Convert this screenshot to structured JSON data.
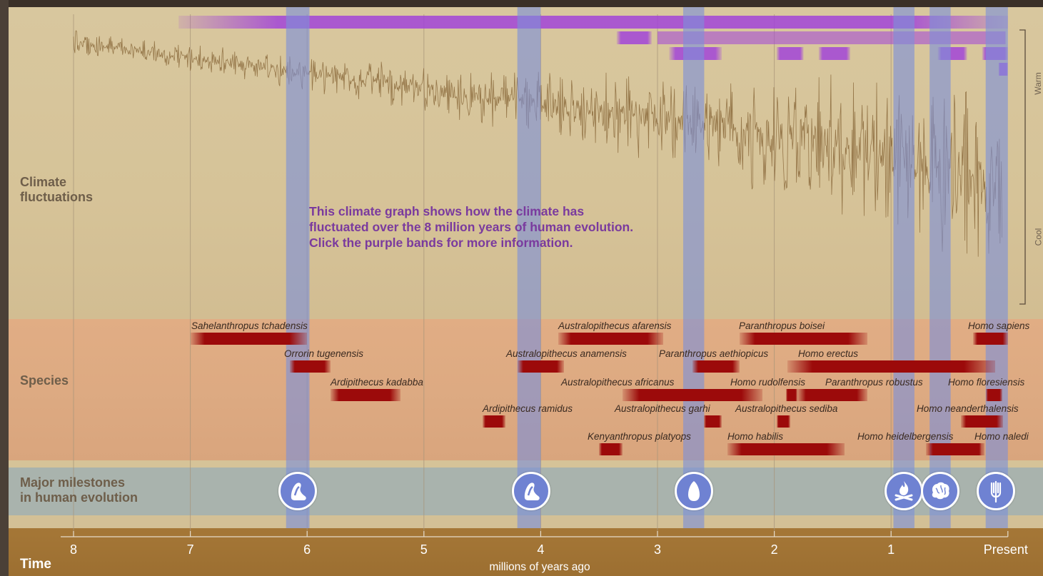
{
  "sections": {
    "climate": "Climate\nfluctuations",
    "species": "Species",
    "milestones": "Major milestones\nin human evolution",
    "time": "Time"
  },
  "climate_note": "This climate graph shows how the climate has\nfluctuated over the 8 million years of human evolution.\nClick the purple bands for more information.",
  "climate_axis": {
    "warm": "Warm",
    "cool": "Cool"
  },
  "time_axis": {
    "ticks": [
      {
        "value": 8,
        "label": "8"
      },
      {
        "value": 7,
        "label": "7"
      },
      {
        "value": 6,
        "label": "6"
      },
      {
        "value": 5,
        "label": "5"
      },
      {
        "value": 4,
        "label": "4"
      },
      {
        "value": 3,
        "label": "3"
      },
      {
        "value": 2,
        "label": "2"
      },
      {
        "value": 1,
        "label": "1"
      },
      {
        "value": 0,
        "label": "Present"
      }
    ],
    "units": "millions of years ago"
  },
  "chart_data": {
    "type": "line",
    "x_range_mya": [
      8,
      0
    ],
    "climate_series_note": "oscillating record; amplitude grows toward present",
    "highlight_bands_mya": [
      [
        6.18,
        5.98
      ],
      [
        4.2,
        4.0
      ],
      [
        2.78,
        2.6
      ],
      [
        0.98,
        0.8
      ],
      [
        0.67,
        0.49
      ],
      [
        0.19,
        0.0
      ]
    ],
    "purple_periods_mya": [
      [
        7.1,
        0.0
      ],
      [
        3.35,
        3.05
      ],
      [
        2.9,
        2.45
      ],
      [
        1.98,
        1.75
      ],
      [
        1.62,
        1.35
      ],
      [
        0.6,
        0.35
      ],
      [
        0.22,
        0.0
      ],
      [
        0.08,
        0.0
      ]
    ]
  },
  "species": [
    {
      "name": "Sahelanthropus tchadensis",
      "start": 7.0,
      "end": 6.0
    },
    {
      "name": "Orrorin tugenensis",
      "start": 6.15,
      "end": 5.8
    },
    {
      "name": "Ardipithecus kadabba",
      "start": 5.8,
      "end": 5.2
    },
    {
      "name": "Ardipithecus ramidus",
      "start": 4.5,
      "end": 4.3
    },
    {
      "name": "Australopithecus anamensis",
      "start": 4.2,
      "end": 3.8
    },
    {
      "name": "Kenyanthropus platyops",
      "start": 3.5,
      "end": 3.3
    },
    {
      "name": "Australopithecus afarensis",
      "start": 3.85,
      "end": 2.95
    },
    {
      "name": "Australopithecus africanus",
      "start": 3.3,
      "end": 2.1
    },
    {
      "name": "Australopithecus garhi",
      "start": 2.6,
      "end": 2.45
    },
    {
      "name": "Paranthropus aethiopicus",
      "start": 2.7,
      "end": 2.3
    },
    {
      "name": "Paranthropus boisei",
      "start": 2.3,
      "end": 1.2
    },
    {
      "name": "Homo habilis",
      "start": 2.4,
      "end": 1.4
    },
    {
      "name": "Homo rudolfensis",
      "start": 1.9,
      "end": 1.8
    },
    {
      "name": "Australopithecus sediba",
      "start": 1.98,
      "end": 1.86
    },
    {
      "name": "Paranthropus robustus",
      "start": 1.8,
      "end": 1.2
    },
    {
      "name": "Homo erectus",
      "start": 1.89,
      "end": 0.11
    },
    {
      "name": "Homo heidelbergensis",
      "start": 0.7,
      "end": 0.2
    },
    {
      "name": "Homo floresiensis",
      "start": 0.19,
      "end": 0.05
    },
    {
      "name": "Homo neanderthalensis",
      "start": 0.4,
      "end": 0.04
    },
    {
      "name": "Homo naledi",
      "start": 0.34,
      "end": 0.23
    },
    {
      "name": "Homo sapiens",
      "start": 0.3,
      "end": 0.0
    }
  ],
  "milestones": [
    {
      "mya": 6.08,
      "icon": "walking-foot-icon"
    },
    {
      "mya": 4.08,
      "icon": "walking-foot-icon"
    },
    {
      "mya": 2.69,
      "icon": "stone-tool-icon"
    },
    {
      "mya": 0.89,
      "icon": "campfire-icon"
    },
    {
      "mya": 0.58,
      "icon": "brain-icon"
    },
    {
      "mya": 0.1,
      "icon": "symbol-trident-icon"
    }
  ],
  "colors": {
    "band": "#7d8fd8",
    "purple": "#a244d8",
    "species_bar": "#9c0a0a",
    "milestone": "#6f82d2"
  }
}
